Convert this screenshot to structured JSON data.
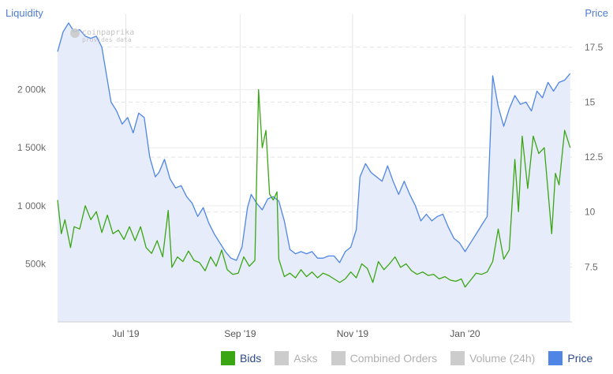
{
  "watermark": {
    "line1": "coinpaprika",
    "line2": "provides data"
  },
  "legend": [
    {
      "label": "Bids",
      "color": "#3aa613",
      "active": true
    },
    {
      "label": "Asks",
      "color": "#cccccc",
      "active": false
    },
    {
      "label": "Combined Orders",
      "color": "#cccccc",
      "active": false
    },
    {
      "label": "Volume (24h)",
      "color": "#cccccc",
      "active": false
    },
    {
      "label": "Price",
      "color": "#4f86e6",
      "active": true
    }
  ],
  "chart_data": {
    "type": "line",
    "title": "",
    "left_axis": {
      "label": "Liquidity",
      "ticks": [
        "500k",
        "1 000k",
        "1 500k",
        "2 000k"
      ],
      "tick_values": [
        500000,
        1000000,
        1500000,
        2000000
      ],
      "range": [
        0,
        2650000
      ]
    },
    "right_axis": {
      "label": "Price",
      "ticks": [
        "7.5",
        "10",
        "12.5",
        "15",
        "17.5"
      ],
      "tick_values": [
        7.5,
        10,
        12.5,
        15,
        17.5
      ],
      "range": [
        5.0,
        19.0
      ]
    },
    "x_axis": {
      "tick_labels": [
        "Jul '19",
        "Sep '19",
        "Nov '19",
        "Jan '20"
      ],
      "tick_dates": [
        "2019-07-01",
        "2019-09-01",
        "2019-11-01",
        "2020-01-01"
      ],
      "range": [
        "2019-05-25",
        "2020-02-28"
      ]
    },
    "grid": true,
    "legend_position": "bottom-right",
    "series": [
      {
        "name": "Price",
        "axis": "right",
        "color": "#4f86e6",
        "fill": "#e6ecfa",
        "points": [
          [
            "2019-05-25",
            17.3
          ],
          [
            "2019-05-28",
            18.2
          ],
          [
            "2019-05-31",
            18.6
          ],
          [
            "2019-06-03",
            18.2
          ],
          [
            "2019-06-06",
            18.3
          ],
          [
            "2019-06-09",
            18.0
          ],
          [
            "2019-06-12",
            17.9
          ],
          [
            "2019-06-15",
            18.0
          ],
          [
            "2019-06-18",
            17.5
          ],
          [
            "2019-06-21",
            16.0
          ],
          [
            "2019-06-23",
            15.0
          ],
          [
            "2019-06-26",
            14.6
          ],
          [
            "2019-06-29",
            14.0
          ],
          [
            "2019-07-02",
            14.3
          ],
          [
            "2019-07-05",
            13.6
          ],
          [
            "2019-07-08",
            14.5
          ],
          [
            "2019-07-11",
            14.3
          ],
          [
            "2019-07-14",
            12.5
          ],
          [
            "2019-07-17",
            11.6
          ],
          [
            "2019-07-19",
            11.8
          ],
          [
            "2019-07-22",
            12.4
          ],
          [
            "2019-07-25",
            11.5
          ],
          [
            "2019-07-28",
            11.1
          ],
          [
            "2019-07-31",
            11.2
          ],
          [
            "2019-08-03",
            10.7
          ],
          [
            "2019-08-06",
            10.4
          ],
          [
            "2019-08-09",
            9.8
          ],
          [
            "2019-08-12",
            10.2
          ],
          [
            "2019-08-15",
            9.5
          ],
          [
            "2019-08-18",
            9.0
          ],
          [
            "2019-08-21",
            8.6
          ],
          [
            "2019-08-24",
            8.2
          ],
          [
            "2019-08-27",
            7.9
          ],
          [
            "2019-08-30",
            7.8
          ],
          [
            "2019-09-02",
            8.4
          ],
          [
            "2019-09-05",
            10.2
          ],
          [
            "2019-09-07",
            10.8
          ],
          [
            "2019-09-10",
            10.4
          ],
          [
            "2019-09-13",
            10.1
          ],
          [
            "2019-09-16",
            10.6
          ],
          [
            "2019-09-19",
            10.7
          ],
          [
            "2019-09-22",
            10.5
          ],
          [
            "2019-09-25",
            9.6
          ],
          [
            "2019-09-28",
            8.3
          ],
          [
            "2019-10-01",
            8.1
          ],
          [
            "2019-10-04",
            8.2
          ],
          [
            "2019-10-07",
            8.1
          ],
          [
            "2019-10-10",
            8.2
          ],
          [
            "2019-10-13",
            7.9
          ],
          [
            "2019-10-16",
            7.9
          ],
          [
            "2019-10-19",
            8.0
          ],
          [
            "2019-10-22",
            8.0
          ],
          [
            "2019-10-25",
            7.7
          ],
          [
            "2019-10-28",
            8.2
          ],
          [
            "2019-10-31",
            8.4
          ],
          [
            "2019-11-03",
            9.2
          ],
          [
            "2019-11-05",
            11.6
          ],
          [
            "2019-11-08",
            12.2
          ],
          [
            "2019-11-11",
            11.8
          ],
          [
            "2019-11-14",
            11.6
          ],
          [
            "2019-11-17",
            11.4
          ],
          [
            "2019-11-20",
            12.1
          ],
          [
            "2019-11-23",
            11.4
          ],
          [
            "2019-11-26",
            10.8
          ],
          [
            "2019-11-29",
            11.4
          ],
          [
            "2019-12-02",
            10.8
          ],
          [
            "2019-12-05",
            10.3
          ],
          [
            "2019-12-08",
            9.6
          ],
          [
            "2019-12-11",
            9.9
          ],
          [
            "2019-12-14",
            9.6
          ],
          [
            "2019-12-17",
            9.8
          ],
          [
            "2019-12-20",
            9.9
          ],
          [
            "2019-12-23",
            9.3
          ],
          [
            "2019-12-26",
            8.8
          ],
          [
            "2019-12-29",
            8.6
          ],
          [
            "2020-01-01",
            8.2
          ],
          [
            "2020-01-04",
            8.6
          ],
          [
            "2020-01-07",
            9.0
          ],
          [
            "2020-01-10",
            9.4
          ],
          [
            "2020-01-13",
            9.8
          ],
          [
            "2020-01-16",
            16.2
          ],
          [
            "2020-01-19",
            14.8
          ],
          [
            "2020-01-22",
            13.9
          ],
          [
            "2020-01-25",
            14.7
          ],
          [
            "2020-01-28",
            15.3
          ],
          [
            "2020-01-31",
            14.9
          ],
          [
            "2020-02-03",
            15.0
          ],
          [
            "2020-02-06",
            14.6
          ],
          [
            "2020-02-09",
            15.5
          ],
          [
            "2020-02-12",
            15.2
          ],
          [
            "2020-02-15",
            15.9
          ],
          [
            "2020-02-18",
            15.5
          ],
          [
            "2020-02-21",
            15.9
          ],
          [
            "2020-02-24",
            16.0
          ],
          [
            "2020-02-27",
            16.3
          ]
        ]
      },
      {
        "name": "Bids",
        "axis": "left",
        "color": "#3aa613",
        "points": [
          [
            "2019-05-25",
            1050000
          ],
          [
            "2019-05-27",
            760000
          ],
          [
            "2019-05-29",
            880000
          ],
          [
            "2019-06-01",
            640000
          ],
          [
            "2019-06-03",
            820000
          ],
          [
            "2019-06-06",
            800000
          ],
          [
            "2019-06-09",
            1000000
          ],
          [
            "2019-06-12",
            880000
          ],
          [
            "2019-06-15",
            950000
          ],
          [
            "2019-06-18",
            770000
          ],
          [
            "2019-06-21",
            920000
          ],
          [
            "2019-06-24",
            760000
          ],
          [
            "2019-06-27",
            790000
          ],
          [
            "2019-06-30",
            710000
          ],
          [
            "2019-07-03",
            820000
          ],
          [
            "2019-07-06",
            700000
          ],
          [
            "2019-07-09",
            820000
          ],
          [
            "2019-07-12",
            640000
          ],
          [
            "2019-07-15",
            590000
          ],
          [
            "2019-07-18",
            700000
          ],
          [
            "2019-07-21",
            560000
          ],
          [
            "2019-07-24",
            960000
          ],
          [
            "2019-07-26",
            470000
          ],
          [
            "2019-07-29",
            560000
          ],
          [
            "2019-08-01",
            520000
          ],
          [
            "2019-08-04",
            610000
          ],
          [
            "2019-08-07",
            530000
          ],
          [
            "2019-08-10",
            510000
          ],
          [
            "2019-08-13",
            440000
          ],
          [
            "2019-08-16",
            560000
          ],
          [
            "2019-08-19",
            480000
          ],
          [
            "2019-08-22",
            620000
          ],
          [
            "2019-08-25",
            450000
          ],
          [
            "2019-08-28",
            410000
          ],
          [
            "2019-08-31",
            420000
          ],
          [
            "2019-09-03",
            560000
          ],
          [
            "2019-09-06",
            480000
          ],
          [
            "2019-09-09",
            530000
          ],
          [
            "2019-09-11",
            2000000
          ],
          [
            "2019-09-13",
            1500000
          ],
          [
            "2019-09-15",
            1650000
          ],
          [
            "2019-09-17",
            1100000
          ],
          [
            "2019-09-19",
            1050000
          ],
          [
            "2019-09-21",
            1120000
          ],
          [
            "2019-09-22",
            540000
          ],
          [
            "2019-09-25",
            390000
          ],
          [
            "2019-09-28",
            420000
          ],
          [
            "2019-10-01",
            380000
          ],
          [
            "2019-10-04",
            450000
          ],
          [
            "2019-10-07",
            390000
          ],
          [
            "2019-10-10",
            430000
          ],
          [
            "2019-10-13",
            380000
          ],
          [
            "2019-10-16",
            420000
          ],
          [
            "2019-10-19",
            400000
          ],
          [
            "2019-10-22",
            370000
          ],
          [
            "2019-10-25",
            340000
          ],
          [
            "2019-10-28",
            370000
          ],
          [
            "2019-10-31",
            430000
          ],
          [
            "2019-11-03",
            380000
          ],
          [
            "2019-11-06",
            500000
          ],
          [
            "2019-11-09",
            460000
          ],
          [
            "2019-11-12",
            340000
          ],
          [
            "2019-11-15",
            520000
          ],
          [
            "2019-11-18",
            450000
          ],
          [
            "2019-11-21",
            500000
          ],
          [
            "2019-11-24",
            560000
          ],
          [
            "2019-11-27",
            470000
          ],
          [
            "2019-11-30",
            500000
          ],
          [
            "2019-12-03",
            440000
          ],
          [
            "2019-12-06",
            410000
          ],
          [
            "2019-12-09",
            430000
          ],
          [
            "2019-12-12",
            400000
          ],
          [
            "2019-12-15",
            410000
          ],
          [
            "2019-12-18",
            370000
          ],
          [
            "2019-12-21",
            390000
          ],
          [
            "2019-12-24",
            360000
          ],
          [
            "2019-12-27",
            350000
          ],
          [
            "2019-12-30",
            370000
          ],
          [
            "2020-01-01",
            300000
          ],
          [
            "2020-01-04",
            360000
          ],
          [
            "2020-01-07",
            420000
          ],
          [
            "2020-01-10",
            410000
          ],
          [
            "2020-01-13",
            430000
          ],
          [
            "2020-01-16",
            520000
          ],
          [
            "2020-01-19",
            800000
          ],
          [
            "2020-01-22",
            540000
          ],
          [
            "2020-01-25",
            620000
          ],
          [
            "2020-01-28",
            1400000
          ],
          [
            "2020-01-30",
            950000
          ],
          [
            "2020-02-01",
            1600000
          ],
          [
            "2020-02-04",
            1150000
          ],
          [
            "2020-02-07",
            1600000
          ],
          [
            "2020-02-10",
            1450000
          ],
          [
            "2020-02-13",
            1500000
          ],
          [
            "2020-02-17",
            760000
          ],
          [
            "2020-02-19",
            1280000
          ],
          [
            "2020-02-21",
            1180000
          ],
          [
            "2020-02-24",
            1650000
          ],
          [
            "2020-02-27",
            1500000
          ]
        ]
      }
    ]
  }
}
